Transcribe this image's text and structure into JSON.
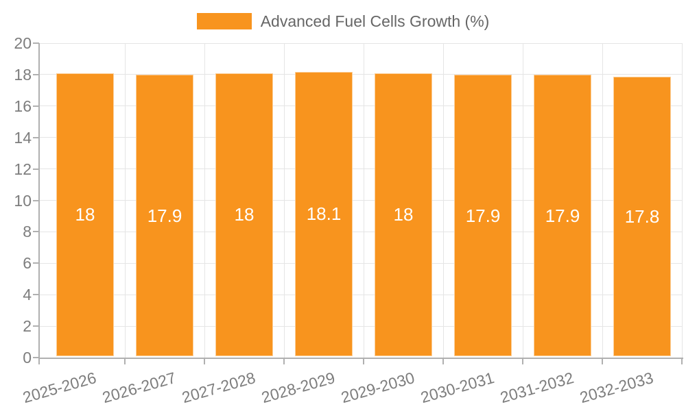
{
  "legend": {
    "label": "Advanced Fuel Cells Growth (%)"
  },
  "chart_data": {
    "type": "bar",
    "title": "Advanced Fuel Cells Growth (%)",
    "categories": [
      "2025-2026",
      "2026-2027",
      "2027-2028",
      "2028-2029",
      "2029-2030",
      "2030-2031",
      "2031-2032",
      "2032-2033"
    ],
    "series": [
      {
        "name": "Advanced Fuel Cells Growth (%)",
        "values": [
          18,
          17.9,
          18,
          18.1,
          18,
          17.9,
          17.9,
          17.8
        ],
        "value_labels": [
          "18",
          "17.9",
          "18",
          "18.1",
          "18",
          "17.9",
          "17.9",
          "17.8"
        ]
      }
    ],
    "xlabel": "",
    "ylabel": "",
    "ylim": [
      0,
      20
    ],
    "yticks": [
      0,
      2,
      4,
      6,
      8,
      10,
      12,
      14,
      16,
      18,
      20
    ],
    "grid": true,
    "legend_position": "top",
    "x_label_rotation_deg": -16,
    "colors": {
      "bar": "#f8941e",
      "bar_value_text": "#ffffff",
      "axis_line": "#b0b0b0",
      "grid_line": "#e5e5e5",
      "axis_tick": "#b0b0b0",
      "tick_label_text": "#7d7d7d",
      "legend_text": "#666666",
      "background": "#ffffff"
    }
  }
}
